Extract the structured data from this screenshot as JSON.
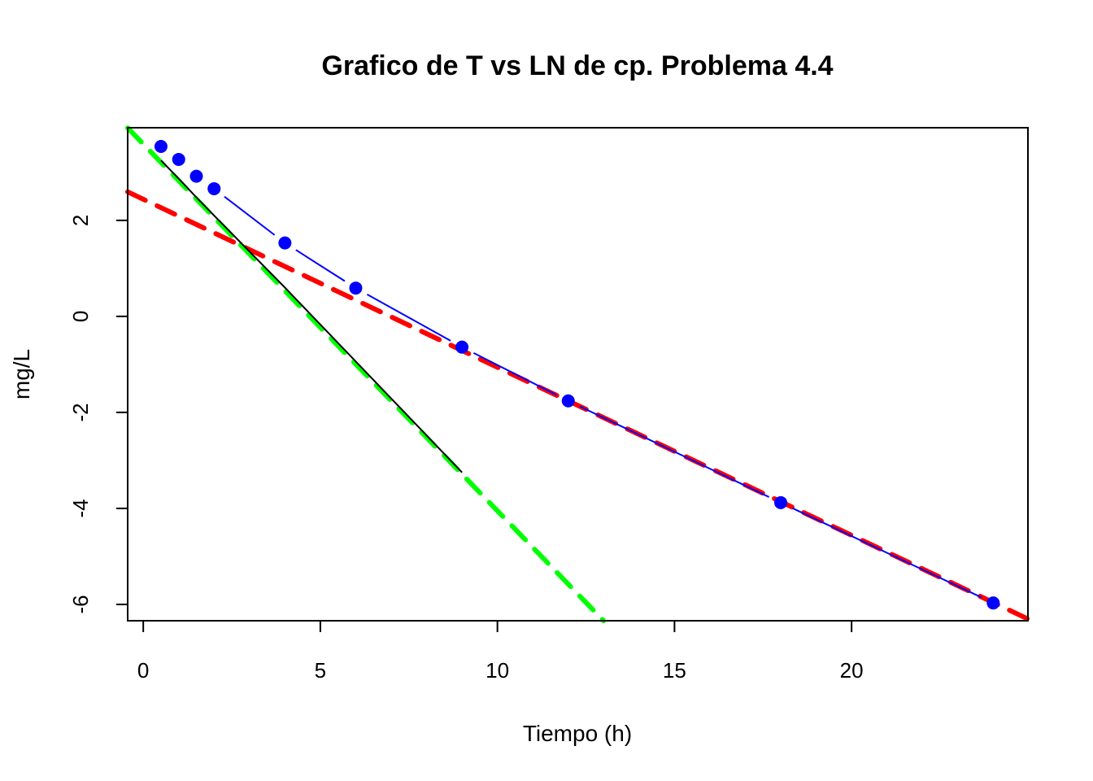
{
  "chart_data": {
    "type": "scatter",
    "title": "Grafico de T vs LN de cp. Problema 4.4",
    "xlabel": "Tiempo (h)",
    "ylabel": "mg/L",
    "xlim": [
      -0.44,
      24.98
    ],
    "ylim": [
      -6.34,
      3.93
    ],
    "xticks": [
      0,
      5,
      10,
      15,
      20
    ],
    "yticks": [
      -6,
      -4,
      -2,
      0,
      2
    ],
    "grid": false,
    "series": [
      {
        "style": "points connected by line with gaps",
        "color": "#0000FF",
        "x": [
          0.5,
          1,
          1.5,
          2,
          4,
          6,
          9,
          12,
          18,
          24
        ],
        "y": [
          3.54,
          3.27,
          2.92,
          2.66,
          1.53,
          0.59,
          -0.64,
          -1.76,
          -3.88,
          -5.97
        ]
      },
      {
        "style": "solid line",
        "color": "#000000",
        "x": [
          0.5,
          1,
          1.5,
          2,
          4,
          6,
          9
        ],
        "y": [
          3.25,
          2.87,
          2.48,
          2.1,
          0.6,
          -0.94,
          -3.25
        ]
      }
    ],
    "ablines": [
      {
        "style": "dashed",
        "color": "#FF0000",
        "intercept": 2.44,
        "slope": -0.35
      },
      {
        "style": "dashed",
        "color": "#00FF00",
        "intercept": 3.59,
        "slope": -0.764
      }
    ]
  }
}
